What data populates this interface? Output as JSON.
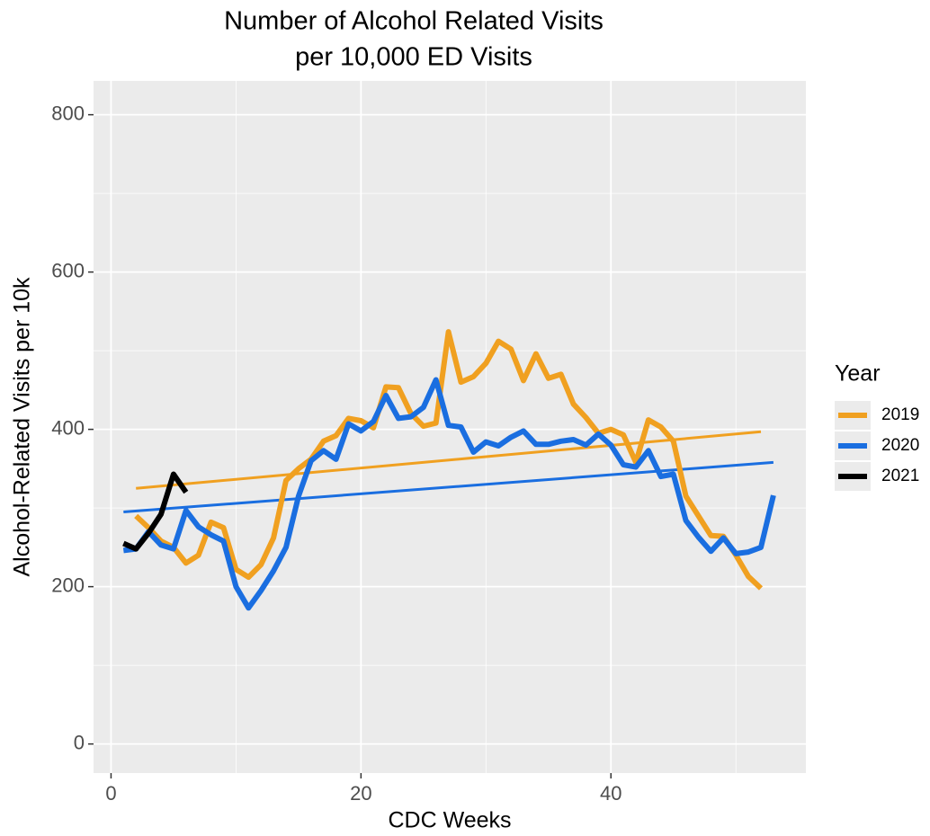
{
  "chart_data": {
    "type": "line",
    "title": [
      "Number of Alcohol Related Visits",
      "per 10,000 ED Visits"
    ],
    "x_label": "CDC Weeks",
    "y_label": "Alcohol-Related Visits per 10k",
    "legend_title": "Year",
    "legend_position": "right",
    "grid": true,
    "background": "#ebebeb",
    "xlim": [
      -1.4,
      55.6
    ],
    "ylim": [
      -37,
      843
    ],
    "xticks": [
      0,
      20,
      40
    ],
    "yticks": [
      0,
      200,
      400,
      600,
      800
    ],
    "x_minor_breaks": [
      10,
      30,
      50
    ],
    "y_minor_breaks": [
      100,
      300,
      500,
      700
    ],
    "series": [
      {
        "name": "2019",
        "color": "#f0a020",
        "x": [
          2,
          3,
          4,
          5,
          6,
          7,
          8,
          9,
          10,
          11,
          12,
          13,
          14,
          15,
          16,
          17,
          18,
          19,
          20,
          21,
          22,
          23,
          24,
          25,
          26,
          27,
          28,
          29,
          30,
          31,
          32,
          33,
          34,
          35,
          36,
          37,
          38,
          39,
          40,
          41,
          42,
          43,
          44,
          45,
          46,
          47,
          48,
          49,
          50,
          51,
          52
        ],
        "values": [
          290,
          275,
          258,
          250,
          230,
          240,
          282,
          275,
          222,
          212,
          228,
          262,
          335,
          350,
          362,
          385,
          392,
          414,
          411,
          402,
          454,
          453,
          420,
          404,
          408,
          524,
          460,
          467,
          484,
          512,
          502,
          462,
          496,
          465,
          470,
          432,
          415,
          395,
          400,
          393,
          358,
          412,
          403,
          385,
          315,
          290,
          265,
          264,
          240,
          213,
          198
        ],
        "trend": {
          "x": [
            2,
            52
          ],
          "values": [
            325,
            397
          ]
        }
      },
      {
        "name": "2020",
        "color": "#1a6ee0",
        "x": [
          1,
          2,
          3,
          4,
          5,
          6,
          7,
          8,
          9,
          10,
          11,
          12,
          13,
          14,
          15,
          16,
          17,
          18,
          19,
          20,
          21,
          22,
          23,
          24,
          25,
          26,
          27,
          28,
          29,
          30,
          31,
          32,
          33,
          34,
          35,
          36,
          37,
          38,
          39,
          40,
          41,
          42,
          43,
          44,
          45,
          46,
          47,
          48,
          49,
          50,
          51,
          52,
          53
        ],
        "values": [
          246,
          248,
          270,
          253,
          248,
          297,
          276,
          266,
          258,
          200,
          173,
          195,
          220,
          250,
          315,
          360,
          373,
          362,
          407,
          398,
          410,
          443,
          414,
          416,
          428,
          463,
          405,
          403,
          371,
          384,
          379,
          390,
          398,
          381,
          381,
          385,
          387,
          380,
          394,
          380,
          355,
          352,
          373,
          340,
          343,
          284,
          263,
          245,
          262,
          242,
          244,
          250,
          316
        ],
        "trend": {
          "x": [
            1,
            53
          ],
          "values": [
            295,
            358
          ]
        }
      },
      {
        "name": "2021",
        "color": "#000000",
        "x": [
          1,
          2,
          3,
          4,
          5,
          6
        ],
        "values": [
          255,
          248,
          268,
          292,
          343,
          320
        ]
      }
    ]
  }
}
